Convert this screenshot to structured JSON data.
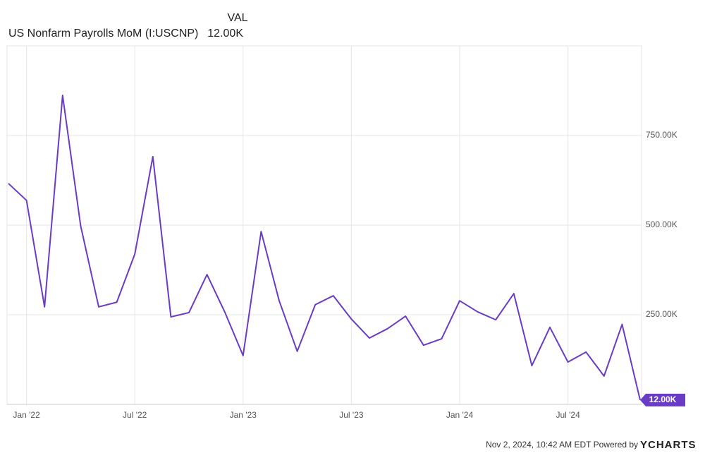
{
  "chart_data": {
    "type": "line",
    "header": {
      "column": "VAL",
      "name": "US Nonfarm Payrolls MoM (I:USCNP)",
      "value": "12.00K"
    },
    "x": [
      "2021-12",
      "2022-01",
      "2022-02",
      "2022-03",
      "2022-04",
      "2022-05",
      "2022-06",
      "2022-07",
      "2022-08",
      "2022-09",
      "2022-10",
      "2022-11",
      "2022-12",
      "2023-01",
      "2023-02",
      "2023-03",
      "2023-04",
      "2023-05",
      "2023-06",
      "2023-07",
      "2023-08",
      "2023-09",
      "2023-10",
      "2023-11",
      "2023-12",
      "2024-01",
      "2024-02",
      "2024-03",
      "2024-04",
      "2024-05",
      "2024-06",
      "2024-07",
      "2024-08",
      "2024-09",
      "2024-10",
      "2024-11"
    ],
    "series": [
      {
        "name": "US Nonfarm Payrolls MoM (I:USCNP)",
        "color": "#6a3bc4",
        "values": [
          616,
          569,
          272,
          862,
          498,
          272,
          285,
          419,
          691,
          244,
          256,
          362,
          256,
          136,
          482,
          289,
          148,
          278,
          303,
          238,
          185,
          211,
          246,
          165,
          183,
          289,
          258,
          236,
          309,
          108,
          215,
          118,
          146,
          79,
          223,
          12
        ]
      }
    ],
    "ylim": [
      0,
      1000
    ],
    "yticks": [
      {
        "value": 250,
        "label": "250.00K"
      },
      {
        "value": 500,
        "label": "500.00K"
      },
      {
        "value": 750,
        "label": "750.00K"
      }
    ],
    "xticks": [
      {
        "value": "2022-01",
        "label": "Jan '22"
      },
      {
        "value": "2022-07",
        "label": "Jul '22"
      },
      {
        "value": "2023-01",
        "label": "Jan '23"
      },
      {
        "value": "2023-07",
        "label": "Jul '23"
      },
      {
        "value": "2024-01",
        "label": "Jan '24"
      },
      {
        "value": "2024-07",
        "label": "Jul '24"
      }
    ],
    "grid": true,
    "footer": {
      "timestamp": "Nov 2, 2024, 10:42 AM EDT Powered by",
      "brand": "YCHARTS"
    }
  }
}
